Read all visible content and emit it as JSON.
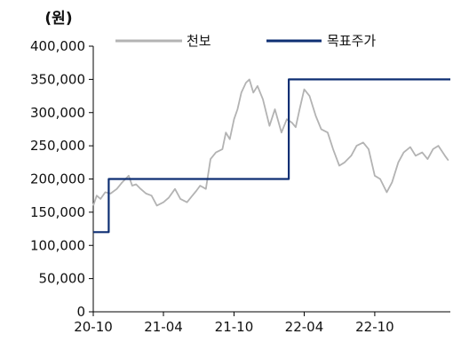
{
  "chart_data": {
    "type": "line",
    "unit_label": "(원)",
    "title": "",
    "xlabel": "",
    "ylabel": "",
    "ylim": [
      0,
      400000
    ],
    "yticks": [
      "0",
      "50,000",
      "100,000",
      "150,000",
      "200,000",
      "250,000",
      "300,000",
      "350,000",
      "400,000"
    ],
    "xlim": [
      "2020-10-01",
      "2023-04-15"
    ],
    "xticks": [
      "20-10",
      "21-04",
      "21-10",
      "22-04",
      "22-10"
    ],
    "grid": false,
    "legend_position": "top",
    "series": [
      {
        "name": "천보",
        "color": "#b3b3b3",
        "style": "line",
        "x": [
          "2020-10-01",
          "2020-10-10",
          "2020-10-20",
          "2020-11-01",
          "2020-11-15",
          "2020-12-01",
          "2020-12-15",
          "2021-01-01",
          "2021-01-10",
          "2021-01-20",
          "2021-02-01",
          "2021-02-15",
          "2021-03-01",
          "2021-03-15",
          "2021-04-01",
          "2021-04-15",
          "2021-05-01",
          "2021-05-15",
          "2021-06-01",
          "2021-06-15",
          "2021-06-25",
          "2021-07-05",
          "2021-07-20",
          "2021-08-01",
          "2021-08-15",
          "2021-09-01",
          "2021-09-10",
          "2021-09-20",
          "2021-10-01",
          "2021-10-10",
          "2021-10-20",
          "2021-11-01",
          "2021-11-10",
          "2021-11-20",
          "2021-12-01",
          "2021-12-15",
          "2022-01-01",
          "2022-01-15",
          "2022-02-01",
          "2022-02-15",
          "2022-02-28",
          "2022-03-10",
          "2022-03-20",
          "2022-04-01",
          "2022-04-15",
          "2022-05-01",
          "2022-05-15",
          "2022-06-01",
          "2022-06-15",
          "2022-07-01",
          "2022-07-15",
          "2022-08-01",
          "2022-08-15",
          "2022-09-01",
          "2022-09-15",
          "2022-10-01",
          "2022-10-15",
          "2022-11-01",
          "2022-11-15",
          "2022-12-01",
          "2022-12-15",
          "2023-01-01",
          "2023-01-15",
          "2023-02-01",
          "2023-02-15",
          "2023-03-01",
          "2023-03-15",
          "2023-04-01",
          "2023-04-10"
        ],
        "values": [
          160000,
          175000,
          170000,
          180000,
          178000,
          185000,
          195000,
          205000,
          190000,
          192000,
          185000,
          178000,
          175000,
          160000,
          165000,
          172000,
          185000,
          170000,
          165000,
          175000,
          182000,
          190000,
          185000,
          230000,
          240000,
          245000,
          270000,
          260000,
          290000,
          305000,
          330000,
          345000,
          350000,
          330000,
          340000,
          320000,
          280000,
          305000,
          270000,
          290000,
          285000,
          278000,
          305000,
          335000,
          325000,
          295000,
          275000,
          270000,
          245000,
          220000,
          225000,
          235000,
          250000,
          255000,
          245000,
          205000,
          200000,
          180000,
          195000,
          225000,
          240000,
          248000,
          235000,
          240000,
          230000,
          245000,
          250000,
          235000,
          228000
        ]
      },
      {
        "name": "목표주가",
        "color": "#0e2f73",
        "style": "step",
        "x": [
          "2020-10-01",
          "2020-11-10",
          "2020-11-10",
          "2022-02-20",
          "2022-02-20",
          "2023-04-15"
        ],
        "values": [
          120000,
          120000,
          200000,
          200000,
          350000,
          350000
        ]
      }
    ]
  }
}
